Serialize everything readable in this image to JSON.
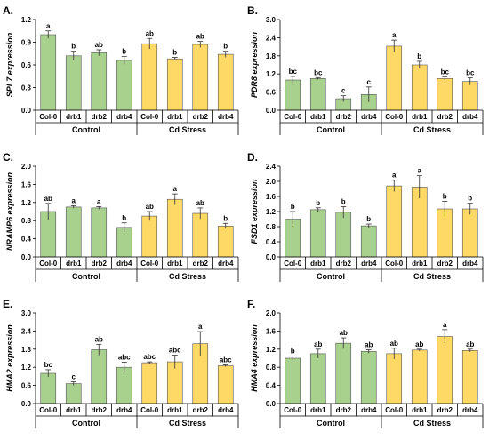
{
  "colors": {
    "control": "#a9d18e",
    "cd_stress": "#ffd966",
    "edge": "#555555",
    "axis": "#000000"
  },
  "groups": [
    "Control",
    "Cd Stress"
  ],
  "chart_data": [
    {
      "panel": "A.",
      "type": "bar",
      "ylabel": "SPL7 expression",
      "ylim": [
        0,
        1.2
      ],
      "yticks": [
        "0.0",
        "0.3",
        "0.6",
        "0.9",
        "1.2"
      ],
      "categories": [
        "Col-0",
        "drb1",
        "drb2",
        "drb4",
        "Col-0",
        "drb1",
        "drb2",
        "drb4"
      ],
      "values": [
        1.0,
        0.72,
        0.76,
        0.66,
        0.88,
        0.68,
        0.87,
        0.74
      ],
      "errors": [
        0.05,
        0.06,
        0.04,
        0.05,
        0.07,
        0.02,
        0.04,
        0.04
      ],
      "letters": [
        "a",
        "b",
        "ab",
        "b",
        "ab",
        "b",
        "ab",
        "b"
      ]
    },
    {
      "panel": "B.",
      "type": "bar",
      "ylabel": "PDR8 expression",
      "ylim": [
        0,
        3.0
      ],
      "yticks": [
        "0.0",
        "0.6",
        "1.2",
        "1.8",
        "2.4",
        "3.0"
      ],
      "categories": [
        "Col-0",
        "drb1",
        "drb2",
        "drb4",
        "Col-0",
        "drb1",
        "drb2",
        "drb4"
      ],
      "values": [
        1.0,
        1.05,
        0.38,
        0.52,
        2.12,
        1.5,
        1.05,
        0.95
      ],
      "errors": [
        0.12,
        0.03,
        0.1,
        0.25,
        0.2,
        0.12,
        0.06,
        0.12
      ],
      "letters": [
        "bc",
        "bc",
        "c",
        "c",
        "a",
        "b",
        "bc",
        "bc"
      ]
    },
    {
      "panel": "C.",
      "type": "bar",
      "ylabel": "NRAMP6 expression",
      "ylim": [
        0,
        2.0
      ],
      "yticks": [
        "0.0",
        "0.4",
        "0.8",
        "1.2",
        "1.6",
        "2.0"
      ],
      "categories": [
        "Col-0",
        "drb1",
        "drb2",
        "drb4",
        "Col-0",
        "drb1",
        "drb2",
        "drb4"
      ],
      "values": [
        1.0,
        1.1,
        1.08,
        0.65,
        0.9,
        1.27,
        0.96,
        0.68
      ],
      "errors": [
        0.18,
        0.03,
        0.03,
        0.1,
        0.1,
        0.12,
        0.12,
        0.06
      ],
      "letters": [
        "ab",
        "a",
        "a",
        "b",
        "ab",
        "a",
        "ab",
        "b"
      ]
    },
    {
      "panel": "D.",
      "type": "bar",
      "ylabel": "FSD1 expression",
      "ylim": [
        0,
        2.4
      ],
      "yticks": [
        "0.0",
        "0.4",
        "0.8",
        "1.2",
        "1.6",
        "2.0",
        "2.4"
      ],
      "categories": [
        "Col-0",
        "drb1",
        "drb2",
        "drb4",
        "Col-0",
        "drb1",
        "drb2",
        "drb4"
      ],
      "values": [
        1.0,
        1.25,
        1.18,
        0.82,
        1.88,
        1.85,
        1.27,
        1.27
      ],
      "errors": [
        0.2,
        0.05,
        0.15,
        0.05,
        0.15,
        0.3,
        0.2,
        0.15
      ],
      "letters": [
        "b",
        "b",
        "b",
        "b",
        "a",
        "a",
        "b",
        "b"
      ]
    },
    {
      "panel": "E.",
      "type": "bar",
      "ylabel": "HMA2 expression",
      "ylim": [
        0,
        3.0
      ],
      "yticks": [
        "0.0",
        "0.6",
        "1.2",
        "1.8",
        "2.4",
        "3.0"
      ],
      "categories": [
        "Col-0",
        "drb1",
        "drb2",
        "drb4",
        "Col-0",
        "drb1",
        "drb2",
        "drb4"
      ],
      "values": [
        1.0,
        0.66,
        1.78,
        1.2,
        1.35,
        1.38,
        1.98,
        1.25
      ],
      "errors": [
        0.12,
        0.06,
        0.18,
        0.17,
        0.03,
        0.22,
        0.4,
        0.03
      ],
      "letters": [
        "bc",
        "c",
        "ab",
        "abc",
        "abc",
        "abc",
        "a",
        "abc"
      ]
    },
    {
      "panel": "F.",
      "type": "bar",
      "ylabel": "HMA4 expression",
      "ylim": [
        0,
        2.0
      ],
      "yticks": [
        "0.0",
        "0.4",
        "0.8",
        "1.2",
        "1.6",
        "2.0"
      ],
      "categories": [
        "Col-0",
        "drb1",
        "drb2",
        "drb4",
        "Col-0",
        "drb1",
        "drb2",
        "drb4"
      ],
      "values": [
        1.0,
        1.1,
        1.33,
        1.15,
        1.1,
        1.18,
        1.48,
        1.17
      ],
      "errors": [
        0.05,
        0.1,
        0.12,
        0.04,
        0.12,
        0.02,
        0.15,
        0.03
      ],
      "letters": [
        "b",
        "ab",
        "ab",
        "ab",
        "ab",
        "ab",
        "a",
        "ab"
      ]
    }
  ]
}
